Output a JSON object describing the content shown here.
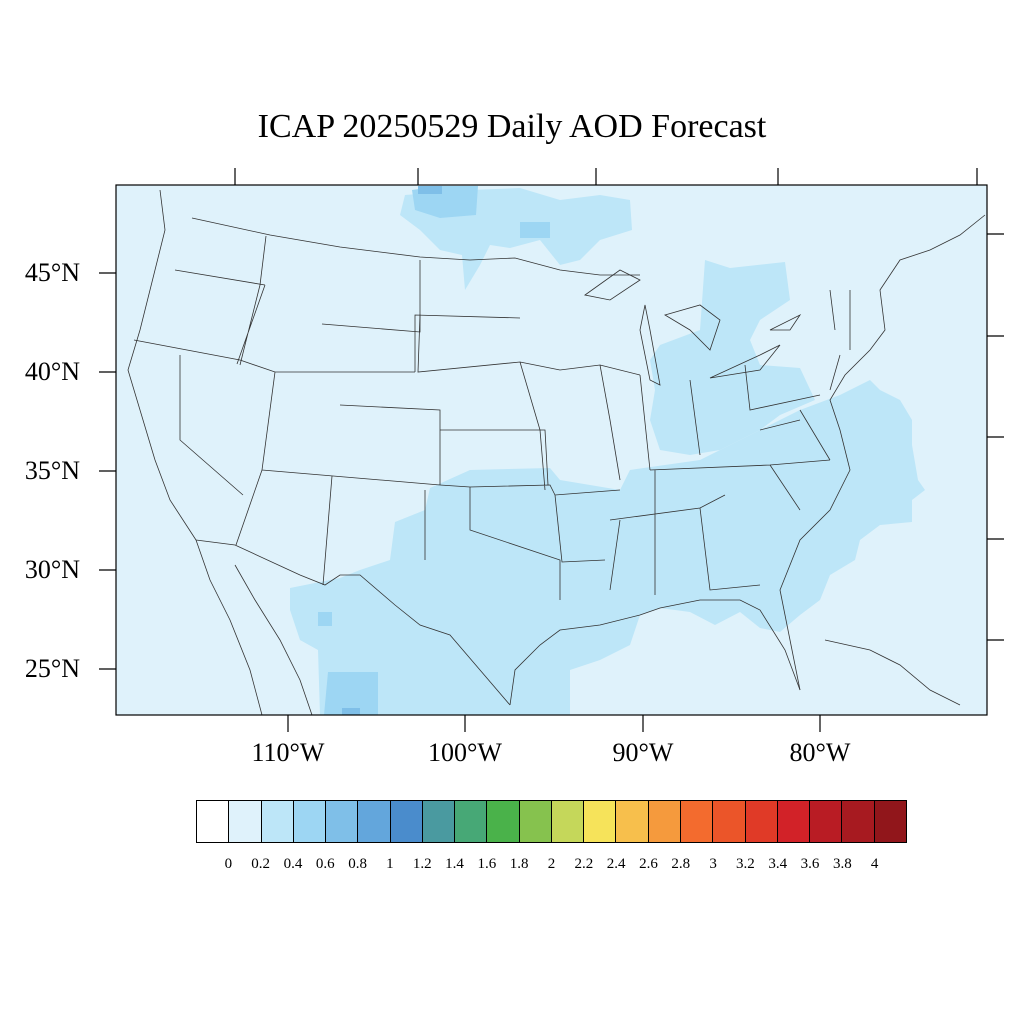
{
  "title": "ICAP 20250529 Daily AOD Forecast",
  "map": {
    "projection": "lambert-conformal",
    "lat_ticks": [
      {
        "label": "45°N",
        "lat": 45
      },
      {
        "label": "40°N",
        "lat": 40
      },
      {
        "label": "35°N",
        "lat": 35
      },
      {
        "label": "30°N",
        "lat": 30
      },
      {
        "label": "25°N",
        "lat": 25
      }
    ],
    "lon_ticks": [
      {
        "label": "110°W",
        "lon": -110
      },
      {
        "label": "100°W",
        "lon": -100
      },
      {
        "label": "90°W",
        "lon": -90
      },
      {
        "label": "80°W",
        "lon": -80
      }
    ],
    "background_aod_level": "0–0.2",
    "background_color": "#dff2fb",
    "elevated_regions": [
      {
        "region": "Texas / Southern Plains",
        "level": "0.2–0.4"
      },
      {
        "region": "Southeast US and Atlantic coast",
        "level": "0.2–0.4"
      },
      {
        "region": "Ohio Valley / Great Lakes",
        "level": "0.2–0.4"
      },
      {
        "region": "Northern Mexico (Chihuahua)",
        "level": "0.4–0.6"
      },
      {
        "region": "Southern Canada (Manitoba/Ontario)",
        "level": "0.4–0.6"
      }
    ]
  },
  "colorbar": {
    "labels": [
      "0",
      "0.2",
      "0.4",
      "0.6",
      "0.8",
      "1",
      "1.2",
      "1.4",
      "1.6",
      "1.8",
      "2",
      "2.2",
      "2.4",
      "2.6",
      "2.8",
      "3",
      "3.2",
      "3.4",
      "3.6",
      "3.8",
      "4"
    ],
    "colors": [
      "#ffffff",
      "#dff2fb",
      "#bde6f8",
      "#9dd6f3",
      "#7fbfe8",
      "#63a6dc",
      "#4a8ccc",
      "#4a9aa0",
      "#47a876",
      "#4ab24a",
      "#86c24e",
      "#c5d75a",
      "#f6e35a",
      "#f7bf4c",
      "#f59a3d",
      "#f36b2e",
      "#eb5529",
      "#e03a27",
      "#d22228",
      "#b91c24",
      "#a71a20",
      "#91161b"
    ]
  }
}
